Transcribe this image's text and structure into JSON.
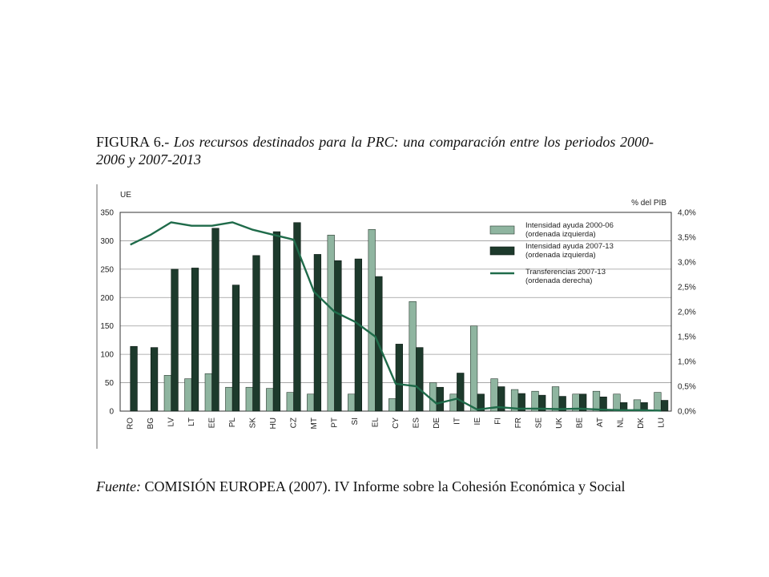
{
  "caption": {
    "lead": "FIGURA 6.-",
    "text": "Los recursos destinados para la PRC: una comparación entre los periodos 2000-2006 y 2007-2013"
  },
  "source": {
    "label": "Fuente:",
    "text": "COMISIÓN EUROPEA (2007). IV Informe sobre la Cohesión Económica y Social"
  },
  "colors": {
    "series_2000_06": "#8fb5a0",
    "series_2007_13": "#1d3a2c",
    "transfers_line": "#1f6b4a",
    "grid": "#999999"
  },
  "chart_data": {
    "type": "bar",
    "title": "",
    "ylabel_left": "UE",
    "ylabel_right": "% del PIB",
    "categories": [
      "RO",
      "BG",
      "LV",
      "LT",
      "EE",
      "PL",
      "SK",
      "HU",
      "CZ",
      "MT",
      "PT",
      "SI",
      "EL",
      "CY",
      "ES",
      "DE",
      "IT",
      "IE",
      "FI",
      "FR",
      "SE",
      "UK",
      "BE",
      "AT",
      "NL",
      "DK",
      "LU"
    ],
    "ylim_left": [
      0,
      350
    ],
    "yticks_left": [
      "0",
      "50",
      "100",
      "150",
      "200",
      "250",
      "300",
      "350"
    ],
    "ylim_right": [
      0,
      4.0
    ],
    "yticks_right": [
      "0,0%",
      "0,5%",
      "1,0%",
      "1,5%",
      "2,0%",
      "2,5%",
      "3,0%",
      "3,5%",
      "4,0%"
    ],
    "grid": true,
    "legend_position": "top-right",
    "series": [
      {
        "name": "Intensidad ayuda 2000-06",
        "name_line2": "(ordenada izquierda)",
        "kind": "bar",
        "axis": "left",
        "values": [
          0,
          0,
          63,
          57,
          66,
          42,
          42,
          40,
          33,
          30,
          310,
          30,
          320,
          22,
          193,
          50,
          30,
          150,
          57,
          38,
          35,
          43,
          30,
          35,
          30,
          20,
          33
        ]
      },
      {
        "name": "Intensidad ayuda 2007-13",
        "name_line2": "(ordenada izquierda)",
        "kind": "bar",
        "axis": "left",
        "values": [
          114,
          112,
          250,
          252,
          322,
          222,
          274,
          316,
          332,
          276,
          265,
          268,
          237,
          118,
          112,
          42,
          67,
          30,
          43,
          31,
          28,
          26,
          30,
          25,
          15,
          15,
          19
        ]
      },
      {
        "name": "Transferencias 2007-13",
        "name_line2": "(ordenada derecha)",
        "kind": "line",
        "axis": "right",
        "values": [
          3.35,
          3.55,
          3.8,
          3.73,
          3.73,
          3.8,
          3.65,
          3.55,
          3.45,
          2.4,
          2.0,
          1.8,
          1.5,
          0.55,
          0.5,
          0.15,
          0.25,
          0.03,
          0.08,
          0.05,
          0.05,
          0.04,
          0.05,
          0.03,
          0.02,
          0.02,
          0.01
        ]
      }
    ]
  }
}
